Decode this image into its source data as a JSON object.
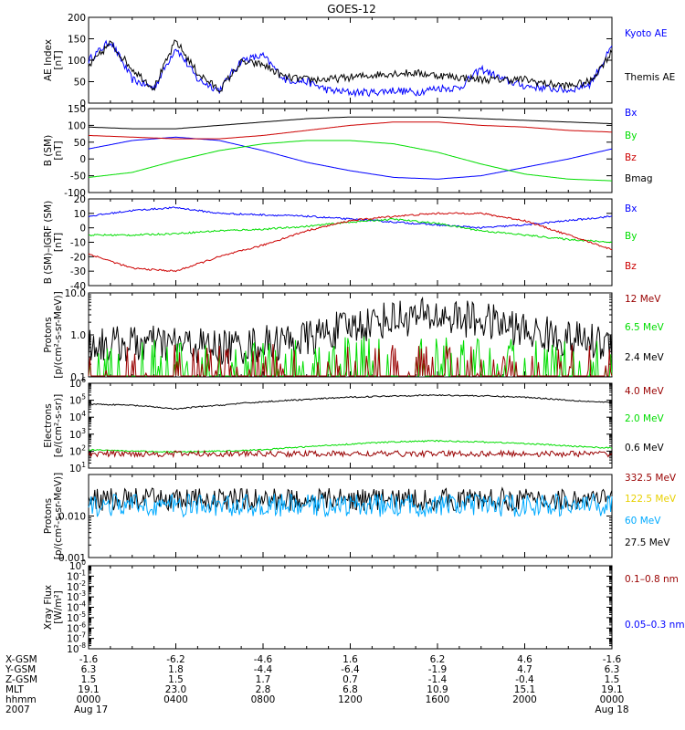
{
  "title": "GOES-12",
  "colors": {
    "black": "#000000",
    "blue": "#0000ff",
    "red": "#cc0000",
    "green": "#00dd00",
    "darkred": "#990000",
    "gold": "#e8d000",
    "cyan": "#00aaff"
  },
  "chart_data": [
    {
      "id": "ae",
      "type": "line",
      "ylabel": [
        "AE Index",
        "[nT]"
      ],
      "ylim": [
        0,
        200
      ],
      "yscale": "linear",
      "yticks": [
        "0",
        "50",
        "100",
        "150",
        "200"
      ],
      "legend": [
        {
          "name": "Kyoto AE",
          "color": "blue"
        },
        {
          "name": "Themis AE",
          "color": "black"
        }
      ],
      "x_hours": [
        0,
        1,
        2,
        3,
        4,
        5,
        6,
        7,
        8,
        9,
        10,
        11,
        12,
        13,
        14,
        15,
        16,
        17,
        18,
        19,
        20,
        21,
        22,
        23,
        24
      ],
      "series": [
        {
          "name": "Kyoto AE",
          "color": "blue",
          "values": [
            100,
            145,
            55,
            35,
            130,
            55,
            30,
            100,
            110,
            55,
            50,
            30,
            25,
            25,
            30,
            25,
            35,
            35,
            80,
            55,
            40,
            35,
            30,
            45,
            130
          ]
        },
        {
          "name": "Themis AE",
          "color": "black",
          "values": [
            85,
            140,
            80,
            35,
            145,
            70,
            30,
            95,
            90,
            60,
            55,
            55,
            60,
            65,
            70,
            70,
            65,
            60,
            55,
            55,
            55,
            45,
            40,
            50,
            120
          ]
        }
      ]
    },
    {
      "id": "bsm",
      "type": "line",
      "ylabel": [
        "B (SM)",
        "[nT]"
      ],
      "ylim": [
        -100,
        150
      ],
      "yscale": "linear",
      "yticks": [
        "-100",
        "-50",
        "0",
        "50",
        "100",
        "150"
      ],
      "legend": [
        {
          "name": "Bx",
          "color": "blue"
        },
        {
          "name": "By",
          "color": "green"
        },
        {
          "name": "Bz",
          "color": "red"
        },
        {
          "name": "Bmag",
          "color": "black"
        }
      ],
      "x_hours": [
        0,
        2,
        4,
        6,
        8,
        10,
        12,
        14,
        16,
        18,
        20,
        22,
        24
      ],
      "series": [
        {
          "name": "Bx",
          "color": "blue",
          "values": [
            30,
            55,
            65,
            55,
            25,
            -10,
            -35,
            -55,
            -60,
            -50,
            -25,
            0,
            30
          ]
        },
        {
          "name": "By",
          "color": "green",
          "values": [
            -55,
            -40,
            -5,
            25,
            45,
            55,
            55,
            45,
            20,
            -15,
            -45,
            -60,
            -65
          ]
        },
        {
          "name": "Bz",
          "color": "red",
          "values": [
            70,
            65,
            60,
            60,
            70,
            85,
            100,
            110,
            110,
            100,
            95,
            85,
            80
          ]
        },
        {
          "name": "Bmag",
          "color": "black",
          "values": [
            95,
            90,
            90,
            100,
            110,
            120,
            125,
            125,
            125,
            120,
            115,
            110,
            105
          ]
        }
      ]
    },
    {
      "id": "bgrf",
      "type": "line",
      "ylabel": [
        "B (SM)–IGRF (SM)",
        "[nT]"
      ],
      "ylim": [
        -40,
        20
      ],
      "yscale": "linear",
      "yticks": [
        "-40",
        "-30",
        "-20",
        "-10",
        "0",
        "10",
        "20"
      ],
      "legend": [
        {
          "name": "Bx",
          "color": "blue"
        },
        {
          "name": "By",
          "color": "green"
        },
        {
          "name": "Bz",
          "color": "red"
        }
      ],
      "x_hours": [
        0,
        2,
        4,
        6,
        8,
        10,
        12,
        14,
        16,
        18,
        20,
        22,
        24
      ],
      "series": [
        {
          "name": "Bx",
          "color": "blue",
          "values": [
            8,
            12,
            14,
            10,
            9,
            8,
            6,
            4,
            2,
            0,
            2,
            5,
            8
          ]
        },
        {
          "name": "By",
          "color": "green",
          "values": [
            -5,
            -5,
            -4,
            -2,
            -1,
            1,
            4,
            6,
            3,
            -2,
            -5,
            -8,
            -10
          ]
        },
        {
          "name": "Bz",
          "color": "red",
          "values": [
            -18,
            -28,
            -30,
            -20,
            -12,
            -2,
            5,
            8,
            10,
            10,
            5,
            -5,
            -15
          ]
        }
      ]
    },
    {
      "id": "protons_low",
      "type": "line",
      "ylabel": [
        "Protons",
        "[p/(cm²-s-sr-MeV)]"
      ],
      "ylim": [
        0.1,
        10
      ],
      "yscale": "log",
      "yticks": [
        "0.1",
        "1.0",
        "10.0"
      ],
      "legend": [
        {
          "name": "12 MeV",
          "color": "darkred"
        },
        {
          "name": "6.5 MeV",
          "color": "green"
        },
        {
          "name": "2.4 MeV",
          "color": "black"
        }
      ],
      "x_hours": [
        0,
        2,
        4,
        6,
        8,
        10,
        12,
        14,
        16,
        18,
        20,
        22,
        24
      ],
      "series": [
        {
          "name": "2.4 MeV",
          "color": "black",
          "values": [
            0.6,
            0.6,
            0.6,
            0.5,
            0.6,
            0.8,
            1.5,
            2.5,
            2.8,
            2.2,
            1.2,
            0.8,
            0.6
          ]
        },
        {
          "name": "6.5 MeV",
          "color": "green",
          "values": [
            0.15,
            0.15,
            0.15,
            0.15,
            0.15,
            0.15,
            0.18,
            0.2,
            0.2,
            0.18,
            0.15,
            0.15,
            0.15
          ]
        },
        {
          "name": "12 MeV",
          "color": "darkred",
          "values": [
            0.12,
            0.12,
            0.12,
            0.12,
            0.12,
            0.12,
            0.12,
            0.12,
            0.12,
            0.12,
            0.12,
            0.12,
            0.12
          ]
        }
      ]
    },
    {
      "id": "electrons",
      "type": "line",
      "ylabel": [
        "Electrons",
        "[e/(cm²-s-sr)]"
      ],
      "ylim": [
        10,
        1000000
      ],
      "yscale": "log",
      "yticks": [
        "10^1",
        "10^2",
        "10^3",
        "10^4",
        "10^5",
        "10^6"
      ],
      "legend": [
        {
          "name": "4.0 MeV",
          "color": "darkred"
        },
        {
          "name": "2.0 MeV",
          "color": "green"
        },
        {
          "name": "0.6 MeV",
          "color": "black"
        }
      ],
      "x_hours": [
        0,
        2,
        4,
        6,
        8,
        10,
        12,
        14,
        16,
        18,
        20,
        22,
        24
      ],
      "series": [
        {
          "name": "0.6 MeV",
          "color": "black",
          "values": [
            60000,
            50000,
            30000,
            50000,
            80000,
            110000,
            150000,
            180000,
            200000,
            180000,
            150000,
            100000,
            70000
          ]
        },
        {
          "name": "2.0 MeV",
          "color": "green",
          "values": [
            120,
            100,
            90,
            100,
            120,
            180,
            260,
            350,
            400,
            350,
            280,
            200,
            150
          ]
        },
        {
          "name": "4.0 MeV",
          "color": "darkred",
          "values": [
            70,
            70,
            70,
            70,
            70,
            70,
            70,
            70,
            70,
            70,
            70,
            70,
            70
          ]
        }
      ]
    },
    {
      "id": "protons_high",
      "type": "line",
      "ylabel": [
        "Protons",
        "[p/(cm²-s-sr-MeV)]"
      ],
      "ylim": [
        0.001,
        0.1
      ],
      "yscale": "log",
      "yticks": [
        "0.001",
        "0.010"
      ],
      "legend": [
        {
          "name": "332.5 MeV",
          "color": "darkred"
        },
        {
          "name": "122.5 MeV",
          "color": "gold"
        },
        {
          "name": "60 MeV",
          "color": "cyan"
        },
        {
          "name": "27.5 MeV",
          "color": "black"
        }
      ],
      "x_hours": [
        0,
        2,
        4,
        6,
        8,
        10,
        12,
        14,
        16,
        18,
        20,
        22,
        24
      ],
      "series": [
        {
          "name": "27.5 MeV",
          "color": "black",
          "values": [
            0.025,
            0.025,
            0.025,
            0.025,
            0.025,
            0.025,
            0.025,
            0.025,
            0.025,
            0.025,
            0.025,
            0.025,
            0.025
          ]
        },
        {
          "name": "60 MeV",
          "color": "cyan",
          "values": [
            0.018,
            0.018,
            0.018,
            0.018,
            0.018,
            0.018,
            0.018,
            0.018,
            0.018,
            0.018,
            0.018,
            0.018,
            0.018
          ]
        }
      ]
    },
    {
      "id": "xray",
      "type": "line",
      "ylabel": [
        "Xray Flux",
        "[W/m²]"
      ],
      "ylim": [
        1e-08,
        1
      ],
      "yscale": "log",
      "yticks": [
        "10^-8",
        "10^-7",
        "10^-6",
        "10^-5",
        "10^-4",
        "10^-3",
        "10^-2",
        "10^-1",
        "10^0"
      ],
      "legend": [
        {
          "name": "0.1–0.8 nm",
          "color": "darkred"
        },
        {
          "name": "0.05–0.3 nm",
          "color": "blue"
        }
      ],
      "series": []
    }
  ],
  "x_axis": {
    "rows": [
      {
        "label": "X-GSM",
        "values": [
          "-1.6",
          "-6.2",
          "-4.6",
          "1.6",
          "6.2",
          "4.6",
          "-1.6"
        ]
      },
      {
        "label": "Y-GSM",
        "values": [
          "6.3",
          "1.8",
          "-4.4",
          "-6.4",
          "-1.9",
          "4.7",
          "6.3"
        ]
      },
      {
        "label": "Z-GSM",
        "values": [
          "1.5",
          "1.5",
          "1.7",
          "0.7",
          "-1.4",
          "-0.4",
          "1.5"
        ]
      },
      {
        "label": "MLT",
        "values": [
          "19.1",
          "23.0",
          "2.8",
          "6.8",
          "10.9",
          "15.1",
          "19.1"
        ]
      },
      {
        "label": "hhmm",
        "values": [
          "0000",
          "0400",
          "0800",
          "1200",
          "1600",
          "2000",
          "0000"
        ]
      },
      {
        "label": "2007",
        "values": [
          "Aug 17",
          "",
          "",
          "",
          "",
          "",
          "Aug 18"
        ]
      }
    ]
  }
}
